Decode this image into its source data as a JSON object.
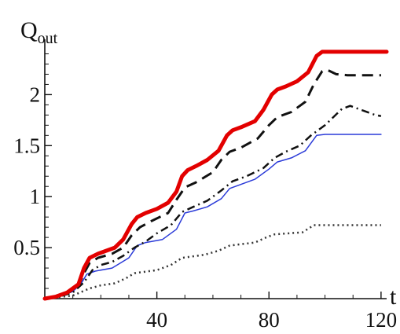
{
  "chart_data": {
    "type": "line",
    "title": "",
    "ylabel_main": "Q",
    "ylabel_sub": "out",
    "xlabel": "t",
    "xlim": [
      0,
      122
    ],
    "ylim": [
      0,
      2.45
    ],
    "x_ticks": [
      40,
      80,
      120
    ],
    "y_ticks": [
      0.5,
      1,
      1.5,
      2
    ],
    "x_tick_labels": [
      "40",
      "80",
      "120"
    ],
    "y_tick_labels": [
      "0.5",
      "1",
      "1.5",
      "2"
    ],
    "grid": false,
    "legend": "none",
    "series": [
      {
        "color": "#e30000",
        "dash": "solid",
        "width": 5,
        "points": [
          [
            0,
            0
          ],
          [
            4,
            0.02
          ],
          [
            8,
            0.06
          ],
          [
            12,
            0.14
          ],
          [
            14,
            0.3
          ],
          [
            16,
            0.4
          ],
          [
            19,
            0.44
          ],
          [
            22,
            0.47
          ],
          [
            25,
            0.5
          ],
          [
            28,
            0.58
          ],
          [
            31,
            0.73
          ],
          [
            33,
            0.8
          ],
          [
            36,
            0.84
          ],
          [
            40,
            0.88
          ],
          [
            44,
            0.94
          ],
          [
            47,
            1.05
          ],
          [
            49,
            1.2
          ],
          [
            51,
            1.26
          ],
          [
            54,
            1.3
          ],
          [
            58,
            1.36
          ],
          [
            62,
            1.45
          ],
          [
            65,
            1.6
          ],
          [
            67,
            1.65
          ],
          [
            70,
            1.68
          ],
          [
            75,
            1.74
          ],
          [
            78,
            1.85
          ],
          [
            81,
            2.0
          ],
          [
            83,
            2.05
          ],
          [
            86,
            2.08
          ],
          [
            90,
            2.13
          ],
          [
            94,
            2.22
          ],
          [
            97,
            2.38
          ],
          [
            99,
            2.42
          ],
          [
            122,
            2.42
          ]
        ]
      },
      {
        "color": "#111111",
        "dash": "14,8",
        "width": 3,
        "points": [
          [
            0,
            0
          ],
          [
            4,
            0.02
          ],
          [
            8,
            0.05
          ],
          [
            12,
            0.12
          ],
          [
            14,
            0.25
          ],
          [
            16,
            0.35
          ],
          [
            19,
            0.4
          ],
          [
            24,
            0.44
          ],
          [
            28,
            0.5
          ],
          [
            31,
            0.62
          ],
          [
            34,
            0.7
          ],
          [
            38,
            0.76
          ],
          [
            44,
            0.84
          ],
          [
            47,
            0.97
          ],
          [
            50,
            1.09
          ],
          [
            54,
            1.14
          ],
          [
            60,
            1.24
          ],
          [
            63,
            1.36
          ],
          [
            66,
            1.44
          ],
          [
            70,
            1.48
          ],
          [
            76,
            1.57
          ],
          [
            80,
            1.7
          ],
          [
            83,
            1.78
          ],
          [
            88,
            1.83
          ],
          [
            93,
            1.93
          ],
          [
            96,
            2.1
          ],
          [
            99,
            2.23
          ],
          [
            101,
            2.24
          ],
          [
            104,
            2.2
          ],
          [
            108,
            2.19
          ],
          [
            120,
            2.19
          ]
        ]
      },
      {
        "color": "#111111",
        "dash": "10,5,2,5",
        "width": 2.5,
        "points": [
          [
            0,
            0
          ],
          [
            5,
            0.02
          ],
          [
            10,
            0.06
          ],
          [
            14,
            0.16
          ],
          [
            17,
            0.28
          ],
          [
            20,
            0.33
          ],
          [
            24,
            0.36
          ],
          [
            28,
            0.42
          ],
          [
            32,
            0.5
          ],
          [
            36,
            0.56
          ],
          [
            40,
            0.64
          ],
          [
            45,
            0.72
          ],
          [
            49,
            0.85
          ],
          [
            53,
            0.9
          ],
          [
            58,
            0.96
          ],
          [
            63,
            1.06
          ],
          [
            67,
            1.15
          ],
          [
            72,
            1.2
          ],
          [
            78,
            1.28
          ],
          [
            82,
            1.38
          ],
          [
            86,
            1.44
          ],
          [
            91,
            1.5
          ],
          [
            95,
            1.6
          ],
          [
            100,
            1.7
          ],
          [
            106,
            1.86
          ],
          [
            109,
            1.89
          ],
          [
            113,
            1.85
          ],
          [
            118,
            1.8
          ],
          [
            120,
            1.79
          ]
        ]
      },
      {
        "color": "#2a3ad8",
        "dash": "solid",
        "width": 1.5,
        "points": [
          [
            0,
            0
          ],
          [
            5,
            0.02
          ],
          [
            10,
            0.07
          ],
          [
            13,
            0.15
          ],
          [
            15,
            0.24
          ],
          [
            18,
            0.27
          ],
          [
            24,
            0.3
          ],
          [
            30,
            0.4
          ],
          [
            33,
            0.52
          ],
          [
            36,
            0.55
          ],
          [
            42,
            0.58
          ],
          [
            47,
            0.68
          ],
          [
            50,
            0.84
          ],
          [
            53,
            0.86
          ],
          [
            58,
            0.9
          ],
          [
            63,
            0.98
          ],
          [
            66,
            1.08
          ],
          [
            69,
            1.11
          ],
          [
            75,
            1.17
          ],
          [
            80,
            1.27
          ],
          [
            83,
            1.34
          ],
          [
            88,
            1.38
          ],
          [
            93,
            1.45
          ],
          [
            97,
            1.6
          ],
          [
            100,
            1.61
          ],
          [
            120,
            1.61
          ]
        ]
      },
      {
        "color": "#333333",
        "dash": "2,4",
        "width": 2.5,
        "points": [
          [
            0,
            0
          ],
          [
            10,
            0.03
          ],
          [
            16,
            0.1
          ],
          [
            20,
            0.13
          ],
          [
            25,
            0.15
          ],
          [
            29,
            0.2
          ],
          [
            32,
            0.25
          ],
          [
            40,
            0.28
          ],
          [
            45,
            0.33
          ],
          [
            49,
            0.4
          ],
          [
            57,
            0.43
          ],
          [
            62,
            0.47
          ],
          [
            66,
            0.52
          ],
          [
            75,
            0.55
          ],
          [
            79,
            0.6
          ],
          [
            82,
            0.63
          ],
          [
            92,
            0.65
          ],
          [
            96,
            0.72
          ],
          [
            120,
            0.72
          ]
        ]
      }
    ]
  }
}
